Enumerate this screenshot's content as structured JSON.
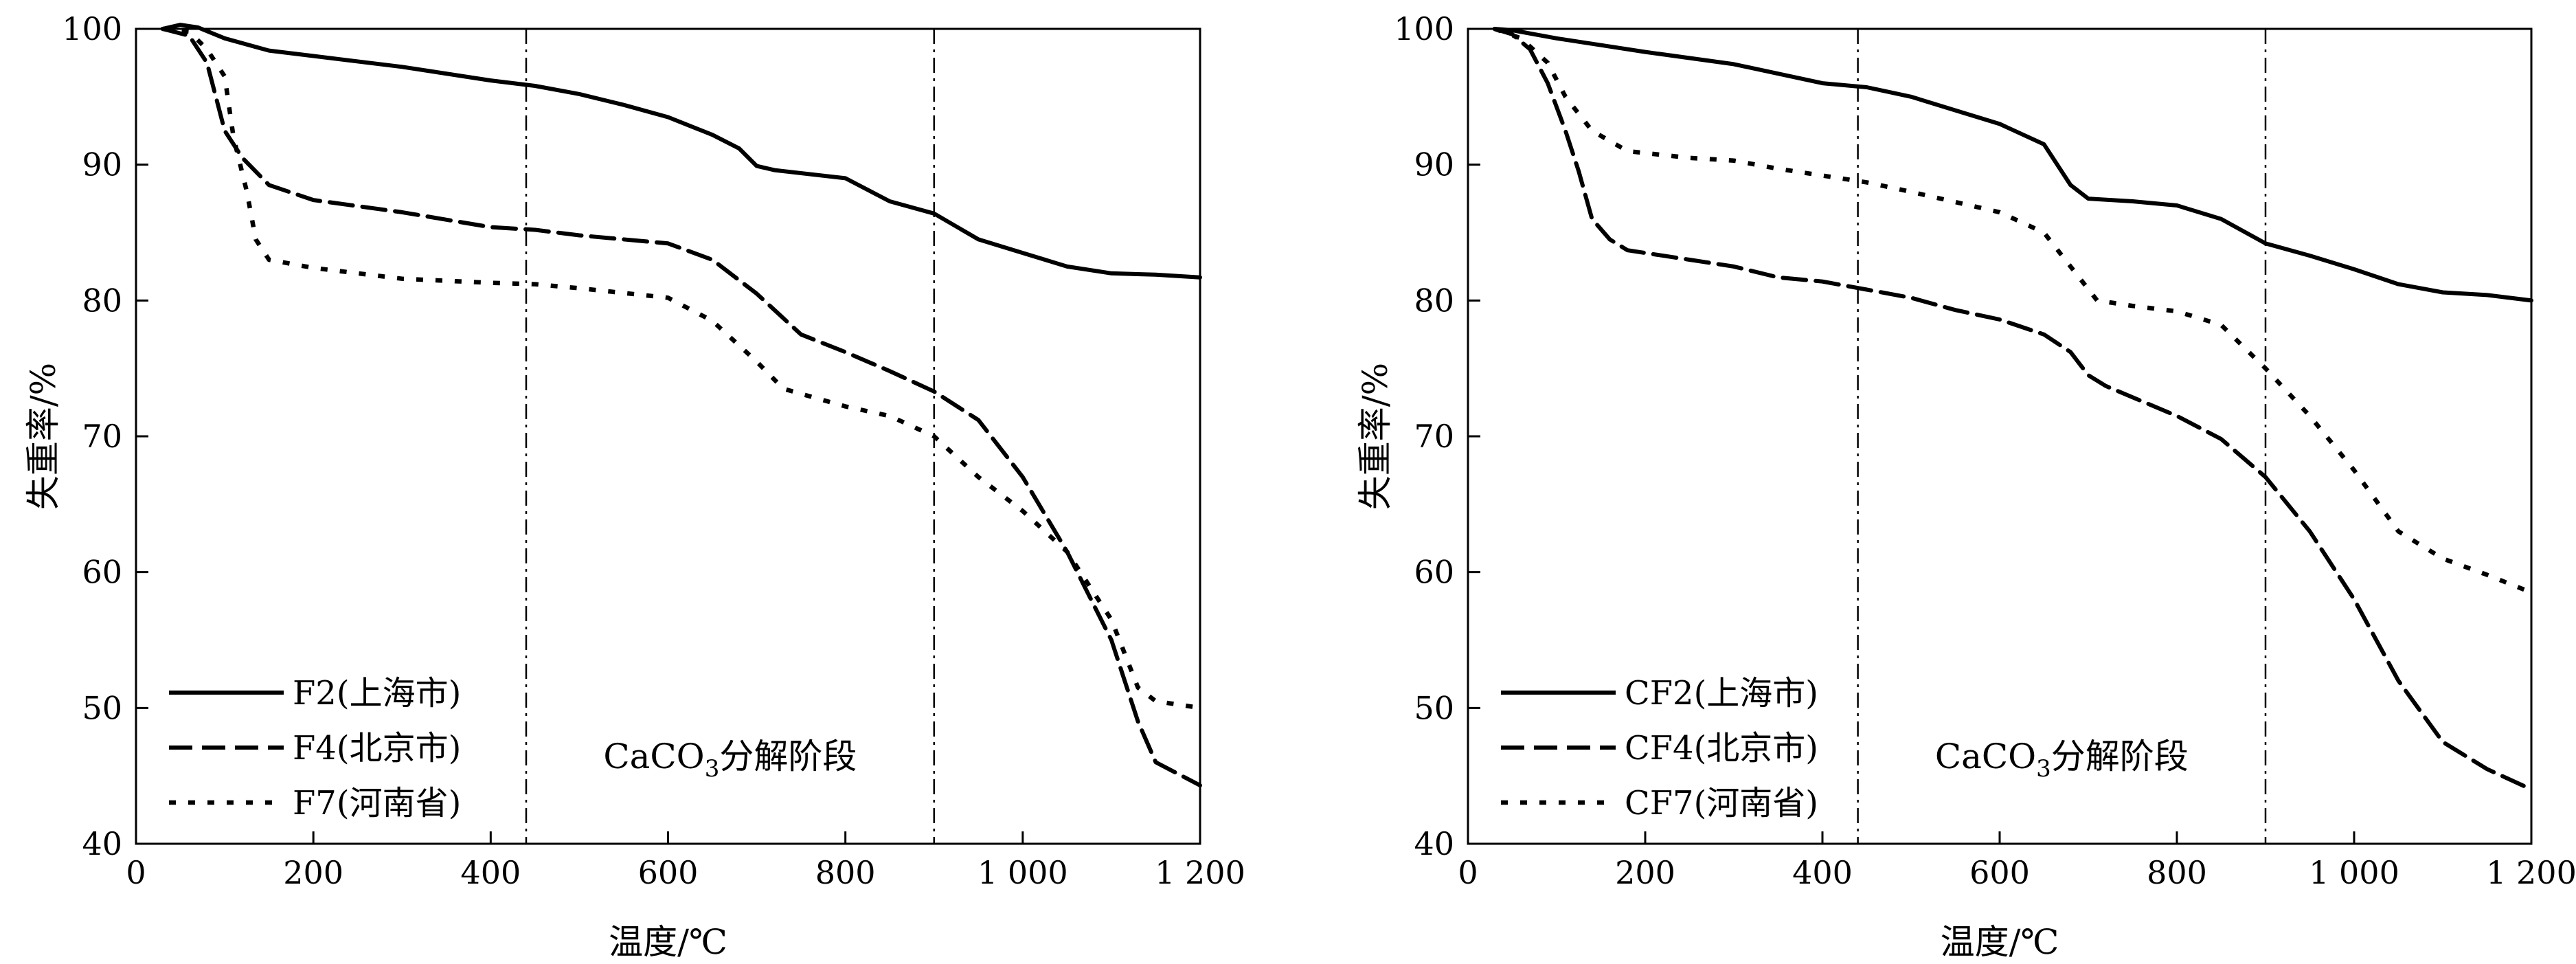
{
  "chart_data": [
    {
      "type": "line",
      "panel": "left",
      "xlabel": "温度/℃",
      "ylabel": "失重率/%",
      "xlim": [
        0,
        1200
      ],
      "ylim": [
        40,
        100
      ],
      "xticks": [
        0,
        200,
        400,
        600,
        800,
        1000,
        1200
      ],
      "xtick_labels": [
        "0",
        "200",
        "400",
        "600",
        "800",
        "1 000",
        "1 200"
      ],
      "yticks": [
        40,
        50,
        60,
        70,
        80,
        90,
        100
      ],
      "ytick_labels": [
        "40",
        "50",
        "60",
        "70",
        "80",
        "90",
        "100"
      ],
      "vlines": [
        440,
        900
      ],
      "annotation": "CaCO",
      "annotation_sub": "3",
      "annotation_suffix": "分解阶段",
      "legend_position": "bottom-left",
      "series": [
        {
          "name": "F2(上海市)",
          "style": "solid",
          "points": [
            [
              30,
              100
            ],
            [
              50,
              100.3
            ],
            [
              70,
              100.1
            ],
            [
              100,
              99.3
            ],
            [
              150,
              98.4
            ],
            [
              200,
              98
            ],
            [
              300,
              97.2
            ],
            [
              400,
              96.2
            ],
            [
              450,
              95.8
            ],
            [
              500,
              95.2
            ],
            [
              550,
              94.4
            ],
            [
              600,
              93.5
            ],
            [
              650,
              92.2
            ],
            [
              680,
              91.2
            ],
            [
              700,
              89.9
            ],
            [
              720,
              89.6
            ],
            [
              800,
              89
            ],
            [
              850,
              87.3
            ],
            [
              900,
              86.4
            ],
            [
              950,
              84.5
            ],
            [
              1000,
              83.5
            ],
            [
              1050,
              82.5
            ],
            [
              1100,
              82
            ],
            [
              1150,
              81.9
            ],
            [
              1200,
              81.7
            ]
          ]
        },
        {
          "name": "F4(北京市)",
          "style": "dashed",
          "points": [
            [
              30,
              100
            ],
            [
              60,
              99.5
            ],
            [
              80,
              97.5
            ],
            [
              90,
              95
            ],
            [
              100,
              92.5
            ],
            [
              120,
              90.5
            ],
            [
              150,
              88.5
            ],
            [
              200,
              87.4
            ],
            [
              300,
              86.5
            ],
            [
              400,
              85.4
            ],
            [
              450,
              85.2
            ],
            [
              500,
              84.8
            ],
            [
              600,
              84.2
            ],
            [
              650,
              83
            ],
            [
              700,
              80.5
            ],
            [
              750,
              77.5
            ],
            [
              800,
              76.2
            ],
            [
              850,
              74.8
            ],
            [
              900,
              73.3
            ],
            [
              950,
              71.2
            ],
            [
              1000,
              67
            ],
            [
              1050,
              61.5
            ],
            [
              1100,
              55
            ],
            [
              1130,
              49
            ],
            [
              1150,
              46
            ],
            [
              1200,
              44.3
            ]
          ]
        },
        {
          "name": "F7(河南省)",
          "style": "dotted",
          "points": [
            [
              30,
              100
            ],
            [
              60,
              99.8
            ],
            [
              80,
              98.5
            ],
            [
              100,
              96.5
            ],
            [
              110,
              92
            ],
            [
              125,
              88
            ],
            [
              135,
              84.5
            ],
            [
              150,
              83
            ],
            [
              200,
              82.4
            ],
            [
              300,
              81.6
            ],
            [
              400,
              81.3
            ],
            [
              450,
              81.2
            ],
            [
              500,
              80.9
            ],
            [
              600,
              80.2
            ],
            [
              650,
              78.5
            ],
            [
              700,
              75.5
            ],
            [
              730,
              73.5
            ],
            [
              800,
              72.2
            ],
            [
              850,
              71.5
            ],
            [
              900,
              70
            ],
            [
              950,
              67
            ],
            [
              1000,
              64.5
            ],
            [
              1050,
              61.5
            ],
            [
              1100,
              56.5
            ],
            [
              1130,
              51.5
            ],
            [
              1150,
              50.5
            ],
            [
              1200,
              50
            ]
          ]
        }
      ]
    },
    {
      "type": "line",
      "panel": "right",
      "xlabel": "温度/℃",
      "ylabel": "失重率/%",
      "xlim": [
        0,
        1200
      ],
      "ylim": [
        40,
        100
      ],
      "xticks": [
        0,
        200,
        400,
        600,
        800,
        1000,
        1200
      ],
      "xtick_labels": [
        "0",
        "200",
        "400",
        "600",
        "800",
        "1 000",
        "1 200"
      ],
      "yticks": [
        40,
        50,
        60,
        70,
        80,
        90,
        100
      ],
      "ytick_labels": [
        "40",
        "50",
        "60",
        "70",
        "80",
        "90",
        "100"
      ],
      "vlines": [
        440,
        900
      ],
      "annotation": "CaCO",
      "annotation_sub": "3",
      "annotation_suffix": "分解阶段",
      "legend_position": "bottom-left",
      "series": [
        {
          "name": "CF2(上海市)",
          "style": "solid",
          "points": [
            [
              30,
              100
            ],
            [
              50,
              99.9
            ],
            [
              100,
              99.3
            ],
            [
              150,
              98.8
            ],
            [
              200,
              98.3
            ],
            [
              300,
              97.4
            ],
            [
              400,
              96
            ],
            [
              450,
              95.7
            ],
            [
              500,
              95
            ],
            [
              550,
              94
            ],
            [
              600,
              93
            ],
            [
              650,
              91.5
            ],
            [
              680,
              88.5
            ],
            [
              700,
              87.5
            ],
            [
              750,
              87.3
            ],
            [
              800,
              87
            ],
            [
              850,
              86
            ],
            [
              900,
              84.2
            ],
            [
              950,
              83.3
            ],
            [
              1000,
              82.3
            ],
            [
              1050,
              81.2
            ],
            [
              1100,
              80.6
            ],
            [
              1150,
              80.4
            ],
            [
              1200,
              80
            ]
          ]
        },
        {
          "name": "CF4(北京市)",
          "style": "dashed",
          "points": [
            [
              30,
              100
            ],
            [
              50,
              99.6
            ],
            [
              70,
              98.5
            ],
            [
              90,
              96
            ],
            [
              110,
              92.5
            ],
            [
              125,
              89.5
            ],
            [
              140,
              86
            ],
            [
              160,
              84.5
            ],
            [
              180,
              83.7
            ],
            [
              250,
              83
            ],
            [
              300,
              82.5
            ],
            [
              350,
              81.7
            ],
            [
              400,
              81.4
            ],
            [
              450,
              80.8
            ],
            [
              500,
              80.2
            ],
            [
              550,
              79.3
            ],
            [
              600,
              78.6
            ],
            [
              650,
              77.5
            ],
            [
              680,
              76.2
            ],
            [
              700,
              74.5
            ],
            [
              720,
              73.7
            ],
            [
              800,
              71.5
            ],
            [
              850,
              69.8
            ],
            [
              900,
              67
            ],
            [
              950,
              63
            ],
            [
              1000,
              58
            ],
            [
              1050,
              52
            ],
            [
              1100,
              47.5
            ],
            [
              1150,
              45.5
            ],
            [
              1200,
              44
            ]
          ]
        },
        {
          "name": "CF7(河南省)",
          "style": "dotted",
          "points": [
            [
              30,
              100
            ],
            [
              60,
              99.3
            ],
            [
              90,
              97.5
            ],
            [
              110,
              95
            ],
            [
              140,
              92.5
            ],
            [
              180,
              91
            ],
            [
              250,
              90.5
            ],
            [
              300,
              90.3
            ],
            [
              350,
              89.7
            ],
            [
              400,
              89.2
            ],
            [
              450,
              88.7
            ],
            [
              500,
              88
            ],
            [
              600,
              86.5
            ],
            [
              650,
              85
            ],
            [
              680,
              82.5
            ],
            [
              710,
              80
            ],
            [
              750,
              79.6
            ],
            [
              800,
              79.2
            ],
            [
              850,
              78.2
            ],
            [
              900,
              75
            ],
            [
              950,
              71.5
            ],
            [
              1000,
              67.5
            ],
            [
              1050,
              63
            ],
            [
              1080,
              61.8
            ],
            [
              1100,
              61
            ],
            [
              1150,
              59.8
            ],
            [
              1200,
              58.5
            ]
          ]
        }
      ]
    }
  ]
}
